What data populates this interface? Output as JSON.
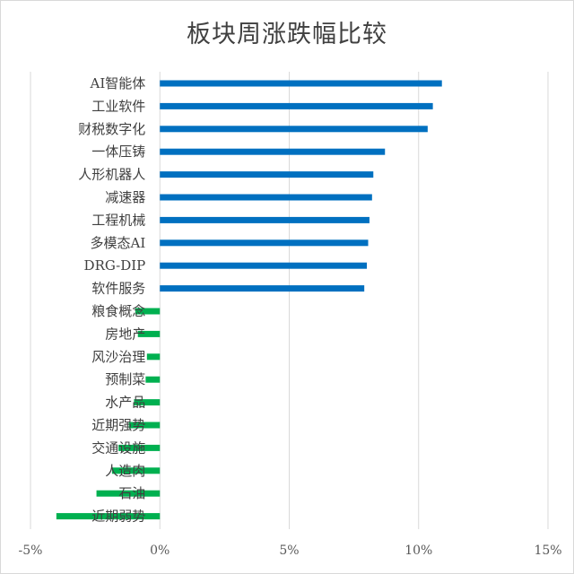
{
  "chart_data": {
    "type": "bar",
    "orientation": "horizontal",
    "title": "板块周涨跌幅比较",
    "xlabel": "",
    "ylabel": "",
    "xlim": [
      -0.05,
      0.15
    ],
    "x_ticks": [
      -0.05,
      0,
      0.05,
      0.1,
      0.15
    ],
    "x_tick_labels": [
      "-5%",
      "0%",
      "5%",
      "10%",
      "15%"
    ],
    "grid": "vertical",
    "legend": "none",
    "categories": [
      "AI智能体",
      "工业软件",
      "财税数字化",
      "一体压铸",
      "人形机器人",
      "减速器",
      "工程机械",
      "多模态AI",
      "DRG-DIP",
      "软件服务",
      "粮食概念",
      "房地产",
      "风沙治理",
      "预制菜",
      "水产品",
      "近期强势",
      "交通设施",
      "人造肉",
      "石油",
      "近期弱势"
    ],
    "values": [
      0.109,
      0.1055,
      0.1035,
      0.087,
      0.0825,
      0.082,
      0.081,
      0.0805,
      0.08,
      0.079,
      -0.0095,
      -0.0085,
      -0.005,
      -0.0055,
      -0.01,
      -0.012,
      -0.016,
      -0.0185,
      -0.0245,
      -0.04
    ],
    "colors": {
      "positive": "#0070c0",
      "negative": "#00b050",
      "grid": "#d9d9d9",
      "text": "#404040"
    }
  }
}
